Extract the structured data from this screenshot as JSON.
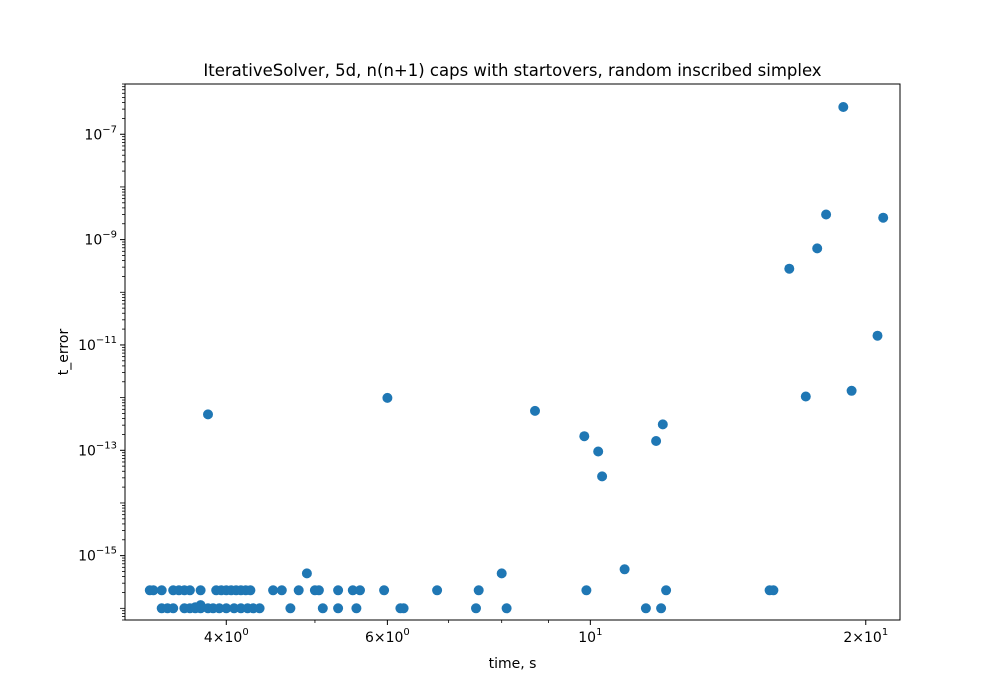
{
  "chart_data": {
    "type": "scatter",
    "title": "IterativeSolver, 5d, n(n+1) caps with startovers, random inscribed simplex",
    "xlabel": "time, s",
    "ylabel": "t_error",
    "xscale": "log",
    "yscale": "log",
    "xlim": [
      3.1,
      21.8
    ],
    "ylim": [
      6e-17,
      9e-07
    ],
    "grid": false,
    "legend": "none",
    "marker_color": "#1f77b4",
    "x_major_ticks": [
      {
        "value": 4,
        "base": "4",
        "mult": "×",
        "ten": "10",
        "exp": "0"
      },
      {
        "value": 6,
        "base": "6",
        "mult": "×",
        "ten": "10",
        "exp": "0"
      },
      {
        "value": 10,
        "base": "",
        "mult": "",
        "ten": "10",
        "exp": "1"
      },
      {
        "value": 20,
        "base": "2",
        "mult": "×",
        "ten": "10",
        "exp": "1"
      }
    ],
    "x_minor_ticks": [
      3,
      5,
      7,
      8,
      9
    ],
    "y_major_ticks": [
      {
        "value": 1e-15,
        "ten": "10",
        "exp": "−15"
      },
      {
        "value": 1e-13,
        "ten": "10",
        "exp": "−13"
      },
      {
        "value": 1e-11,
        "ten": "10",
        "exp": "−11"
      },
      {
        "value": 1e-09,
        "ten": "10",
        "exp": "−9"
      },
      {
        "value": 1e-07,
        "ten": "10",
        "exp": "−7"
      }
    ],
    "points": [
      [
        3.3,
        2.2e-16
      ],
      [
        3.33,
        2.2e-16
      ],
      [
        3.4,
        2.2e-16
      ],
      [
        3.5,
        2.2e-16
      ],
      [
        3.55,
        2.2e-16
      ],
      [
        3.6,
        2.2e-16
      ],
      [
        3.65,
        2.2e-16
      ],
      [
        3.75,
        2.2e-16
      ],
      [
        3.9,
        2.2e-16
      ],
      [
        3.95,
        2.2e-16
      ],
      [
        4.0,
        2.2e-16
      ],
      [
        4.05,
        2.2e-16
      ],
      [
        4.1,
        2.2e-16
      ],
      [
        4.15,
        2.2e-16
      ],
      [
        4.2,
        2.2e-16
      ],
      [
        4.25,
        2.2e-16
      ],
      [
        4.5,
        2.2e-16
      ],
      [
        4.6,
        2.2e-16
      ],
      [
        4.8,
        2.2e-16
      ],
      [
        5.0,
        2.2e-16
      ],
      [
        5.05,
        2.2e-16
      ],
      [
        5.3,
        2.2e-16
      ],
      [
        5.5,
        2.2e-16
      ],
      [
        5.6,
        2.2e-16
      ],
      [
        5.95,
        2.2e-16
      ],
      [
        6.8,
        2.2e-16
      ],
      [
        7.55,
        2.2e-16
      ],
      [
        9.9,
        2.2e-16
      ],
      [
        12.1,
        2.2e-16
      ],
      [
        15.7,
        2.2e-16
      ],
      [
        15.85,
        2.2e-16
      ],
      [
        3.4,
        1e-16
      ],
      [
        3.45,
        1e-16
      ],
      [
        3.5,
        1e-16
      ],
      [
        3.6,
        1e-16
      ],
      [
        3.65,
        1e-16
      ],
      [
        3.7,
        1e-16
      ],
      [
        3.75,
        1e-16
      ],
      [
        3.82,
        1e-16
      ],
      [
        3.87,
        1e-16
      ],
      [
        3.93,
        1e-16
      ],
      [
        4.0,
        1e-16
      ],
      [
        4.08,
        1e-16
      ],
      [
        4.15,
        1e-16
      ],
      [
        4.22,
        1e-16
      ],
      [
        4.28,
        1e-16
      ],
      [
        4.35,
        1e-16
      ],
      [
        4.7,
        1e-16
      ],
      [
        5.1,
        1e-16
      ],
      [
        5.3,
        1e-16
      ],
      [
        5.55,
        1e-16
      ],
      [
        6.2,
        1e-16
      ],
      [
        6.25,
        1e-16
      ],
      [
        7.5,
        1e-16
      ],
      [
        8.1,
        1e-16
      ],
      [
        11.5,
        1e-16
      ],
      [
        11.95,
        1e-16
      ],
      [
        3.75,
        1.15e-16
      ],
      [
        3.7,
        1.05e-16
      ],
      [
        4.9,
        4.6e-16
      ],
      [
        8.0,
        4.6e-16
      ],
      [
        10.9,
        5.5e-16
      ],
      [
        3.82,
        4.8e-13
      ],
      [
        6.0,
        9.9e-13
      ],
      [
        8.7,
        5.6e-13
      ],
      [
        9.85,
        1.85e-13
      ],
      [
        10.2,
        9.5e-14
      ],
      [
        10.3,
        3.2e-14
      ],
      [
        11.8,
        1.5e-13
      ],
      [
        12.0,
        3.1e-13
      ],
      [
        16.5,
        2.8e-10
      ],
      [
        17.2,
        1.05e-12
      ],
      [
        17.7,
        6.8e-10
      ],
      [
        18.1,
        3e-09
      ],
      [
        18.9,
        3.3e-07
      ],
      [
        19.3,
        1.35e-12
      ],
      [
        20.6,
        1.5e-11
      ],
      [
        20.9,
        2.6e-09
      ]
    ]
  }
}
